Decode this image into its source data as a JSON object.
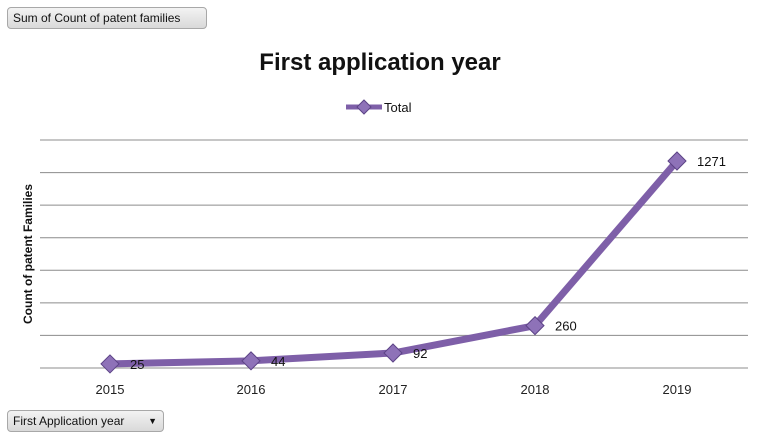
{
  "pivot": {
    "value_field_button": "Sum of Count of patent families",
    "axis_field_button": "First Application year",
    "dropdown_icon": "triangle-down-icon"
  },
  "chart_data": {
    "type": "line",
    "title": "First application year",
    "xlabel": "",
    "ylabel": "Count of patent Families",
    "categories": [
      "2015",
      "2016",
      "2017",
      "2018",
      "2019"
    ],
    "series": [
      {
        "name": "Total",
        "values": [
          25,
          44,
          92,
          260,
          1271
        ],
        "color": "#7e5fa8",
        "marker": "diamond"
      }
    ],
    "data_labels": [
      "25",
      "44",
      "92",
      "260",
      "1271"
    ],
    "ylim": [
      0,
      1400
    ],
    "y_axis_tick_labels": "hidden",
    "grid": true,
    "legend": "top"
  }
}
